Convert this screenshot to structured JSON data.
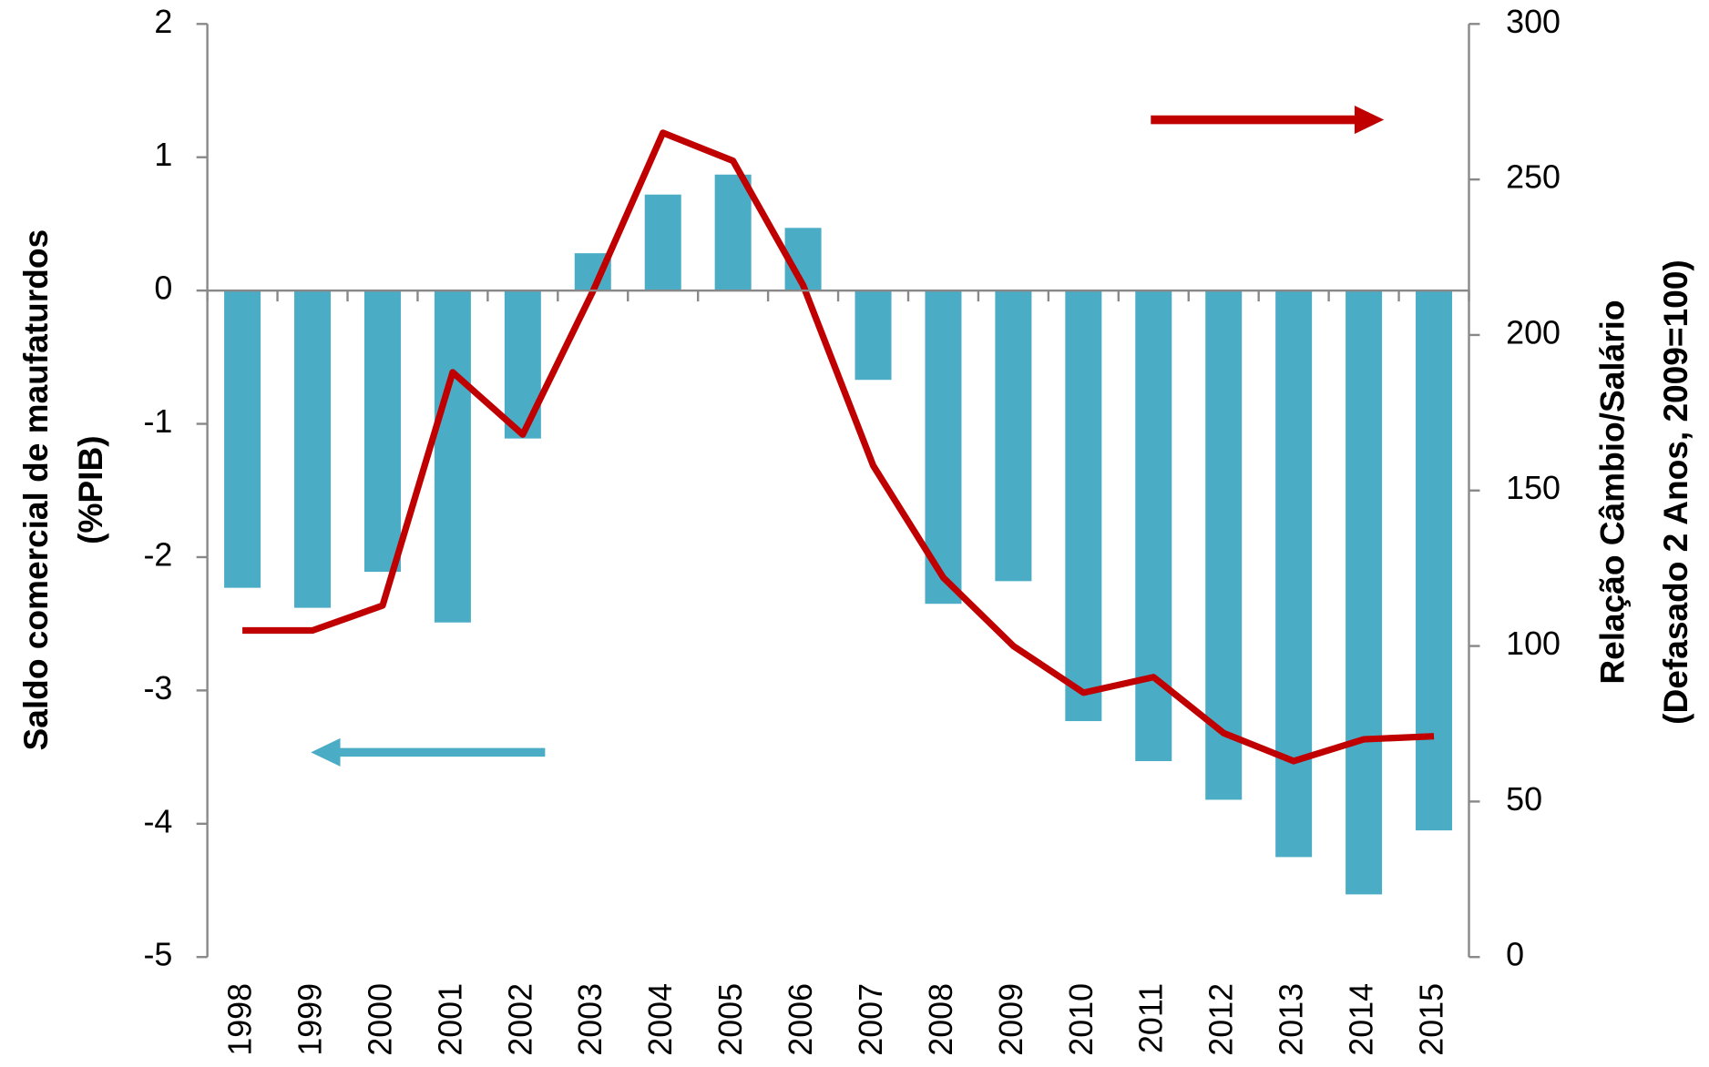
{
  "chart_data": {
    "type": "bar-line",
    "categories": [
      "1998",
      "1999",
      "2000",
      "2001",
      "2002",
      "2003",
      "2004",
      "2005",
      "2006",
      "2007",
      "2008",
      "2009",
      "2010",
      "2011",
      "2012",
      "2013",
      "2014",
      "2015"
    ],
    "series": [
      {
        "type": "bar",
        "color": "#4bacc6",
        "values": [
          -2.23,
          -2.38,
          -2.11,
          -2.49,
          -1.11,
          0.28,
          0.72,
          0.87,
          0.47,
          -0.67,
          -2.35,
          -2.18,
          -3.23,
          -3.53,
          -3.82,
          -4.25,
          -4.53,
          -4.05
        ]
      },
      {
        "type": "line",
        "axis": "y2",
        "color": "#c00000",
        "values": [
          105,
          105,
          113,
          188,
          168,
          214,
          265,
          256,
          216,
          158,
          122,
          100,
          85,
          90,
          72,
          63,
          70,
          71
        ]
      }
    ],
    "ylabel": [
      "Saldo comercial de maufaturdos",
      "(%PIB)"
    ],
    "y2label": [
      "Relação Câmbio/Salário",
      "(Defasado 2 Anos, 2009=100)"
    ],
    "ylim": [
      -5,
      2
    ],
    "yticks": [
      -5,
      -4,
      -3,
      -2,
      -1,
      0,
      1,
      2
    ],
    "y2lim": [
      0,
      300
    ],
    "y2ticks": [
      0,
      50,
      100,
      150,
      200,
      250,
      300
    ]
  }
}
